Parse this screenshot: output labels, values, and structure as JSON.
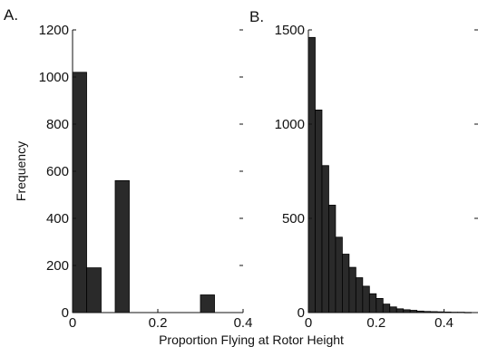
{
  "chart_data": [
    {
      "type": "bar",
      "panel_label": "A.",
      "title": "",
      "xlabel": "",
      "ylabel": "Frequency",
      "xlim": [
        0,
        0.4
      ],
      "ylim": [
        0,
        1200
      ],
      "xticks": [
        "0",
        "0.2",
        "0.4"
      ],
      "yticks": [
        "0",
        "200",
        "400",
        "600",
        "800",
        "1000",
        "1200"
      ],
      "bars": [
        {
          "x0": 0.0,
          "x1": 0.033,
          "value": 1020
        },
        {
          "x0": 0.033,
          "x1": 0.067,
          "value": 190
        },
        {
          "x0": 0.1,
          "x1": 0.133,
          "value": 560
        },
        {
          "x0": 0.3,
          "x1": 0.333,
          "value": 75
        }
      ],
      "colors": {
        "bar": "#2a2a2a"
      }
    },
    {
      "type": "bar",
      "panel_label": "B.",
      "title": "",
      "xlabel": "",
      "ylabel": "",
      "xlim": [
        0,
        0.5
      ],
      "ylim": [
        0,
        1500
      ],
      "xticks": [
        "0",
        "0.2",
        "0.4"
      ],
      "yticks": [
        "0",
        "500",
        "1000",
        "1500"
      ],
      "bars": [
        {
          "x0": 0.0,
          "x1": 0.02,
          "value": 1460
        },
        {
          "x0": 0.02,
          "x1": 0.04,
          "value": 1075
        },
        {
          "x0": 0.04,
          "x1": 0.06,
          "value": 780
        },
        {
          "x0": 0.06,
          "x1": 0.08,
          "value": 570
        },
        {
          "x0": 0.08,
          "x1": 0.1,
          "value": 400
        },
        {
          "x0": 0.1,
          "x1": 0.12,
          "value": 310
        },
        {
          "x0": 0.12,
          "x1": 0.14,
          "value": 240
        },
        {
          "x0": 0.14,
          "x1": 0.16,
          "value": 185
        },
        {
          "x0": 0.16,
          "x1": 0.18,
          "value": 140
        },
        {
          "x0": 0.18,
          "x1": 0.2,
          "value": 100
        },
        {
          "x0": 0.2,
          "x1": 0.22,
          "value": 75
        },
        {
          "x0": 0.22,
          "x1": 0.24,
          "value": 45
        },
        {
          "x0": 0.24,
          "x1": 0.26,
          "value": 30
        },
        {
          "x0": 0.26,
          "x1": 0.28,
          "value": 20
        },
        {
          "x0": 0.28,
          "x1": 0.3,
          "value": 15
        },
        {
          "x0": 0.3,
          "x1": 0.32,
          "value": 12
        },
        {
          "x0": 0.32,
          "x1": 0.34,
          "value": 8
        },
        {
          "x0": 0.34,
          "x1": 0.36,
          "value": 6
        },
        {
          "x0": 0.36,
          "x1": 0.38,
          "value": 5
        },
        {
          "x0": 0.38,
          "x1": 0.4,
          "value": 4
        },
        {
          "x0": 0.4,
          "x1": 0.42,
          "value": 3
        },
        {
          "x0": 0.42,
          "x1": 0.44,
          "value": 2
        },
        {
          "x0": 0.44,
          "x1": 0.46,
          "value": 2
        },
        {
          "x0": 0.46,
          "x1": 0.48,
          "value": 1
        }
      ],
      "colors": {
        "bar": "#2a2a2a"
      }
    }
  ],
  "shared_xlabel": "Proportion Flying at Rotor Height"
}
